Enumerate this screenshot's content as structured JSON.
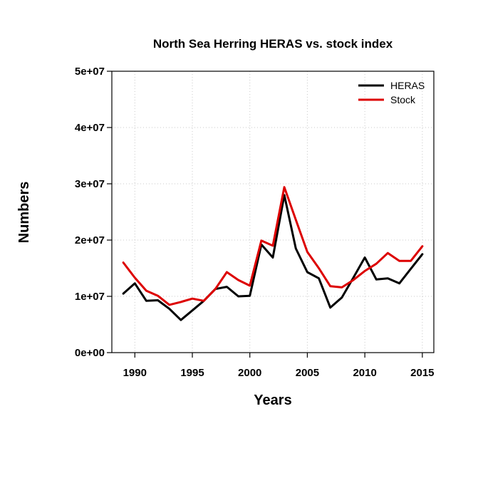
{
  "chart_data": {
    "type": "line",
    "title": "North Sea Herring HERAS vs. stock index",
    "xlabel": "Years",
    "ylabel": "Numbers",
    "xlim": [
      1988,
      2016
    ],
    "ylim": [
      0,
      50000000
    ],
    "x_ticks": [
      1990,
      1995,
      2000,
      2005,
      2010,
      2015
    ],
    "x_tick_labels": [
      "1990",
      "1995",
      "2000",
      "2005",
      "2010",
      "2015"
    ],
    "y_ticks": [
      0,
      10000000,
      20000000,
      30000000,
      40000000,
      50000000
    ],
    "y_tick_labels": [
      "0e+00",
      "1e+07",
      "2e+07",
      "3e+07",
      "4e+07",
      "5e+07"
    ],
    "grid": true,
    "legend_position": "top-right",
    "x": [
      1989,
      1990,
      1991,
      1992,
      1993,
      1994,
      1995,
      1996,
      1997,
      1998,
      1999,
      2000,
      2001,
      2002,
      2003,
      2004,
      2005,
      2006,
      2007,
      2008,
      2009,
      2010,
      2011,
      2012,
      2013,
      2014,
      2015
    ],
    "series": [
      {
        "name": "HERAS",
        "color": "#000000",
        "values": [
          10500000,
          12300000,
          9200000,
          9300000,
          7800000,
          5800000,
          7500000,
          9200000,
          11300000,
          11700000,
          10000000,
          10100000,
          19200000,
          16900000,
          28000000,
          18500000,
          14300000,
          13200000,
          8000000,
          9800000,
          13300000,
          16900000,
          13000000,
          13200000,
          12300000,
          14900000,
          17500000
        ]
      },
      {
        "name": "Stock",
        "color": "#dd0000",
        "values": [
          16000000,
          13300000,
          11000000,
          10100000,
          8500000,
          9000000,
          9600000,
          9200000,
          11300000,
          14300000,
          12900000,
          11900000,
          19900000,
          19000000,
          29400000,
          23600000,
          17900000,
          15000000,
          11800000,
          11600000,
          12900000,
          14500000,
          15800000,
          17700000,
          16300000,
          16300000,
          18900000
        ]
      }
    ]
  }
}
